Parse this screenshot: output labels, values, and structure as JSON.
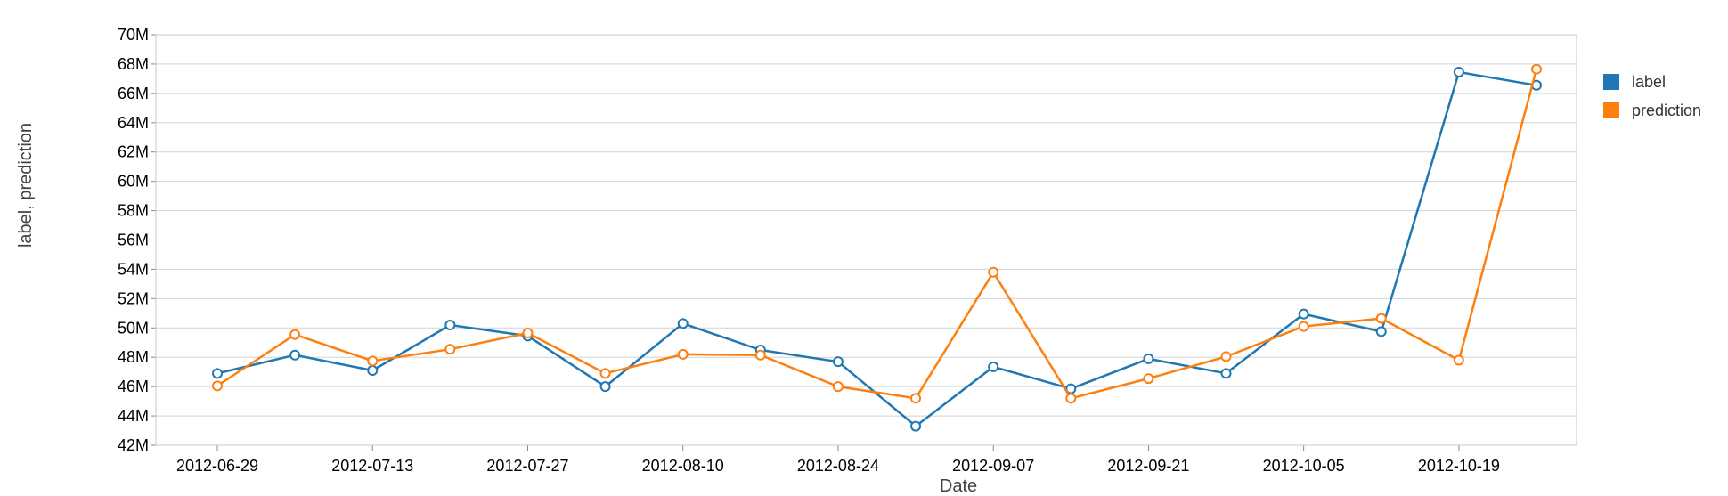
{
  "chart_data": {
    "type": "line",
    "title": "",
    "xlabel": "Date",
    "ylabel": "label, prediction",
    "ylim": [
      42000000,
      70000000
    ],
    "y_ticks": [
      {
        "value": 42000000,
        "label": "42M"
      },
      {
        "value": 44000000,
        "label": "44M"
      },
      {
        "value": 46000000,
        "label": "46M"
      },
      {
        "value": 48000000,
        "label": "48M"
      },
      {
        "value": 50000000,
        "label": "50M"
      },
      {
        "value": 52000000,
        "label": "52M"
      },
      {
        "value": 54000000,
        "label": "54M"
      },
      {
        "value": 56000000,
        "label": "56M"
      },
      {
        "value": 58000000,
        "label": "58M"
      },
      {
        "value": 60000000,
        "label": "60M"
      },
      {
        "value": 62000000,
        "label": "62M"
      },
      {
        "value": 64000000,
        "label": "64M"
      },
      {
        "value": 66000000,
        "label": "66M"
      },
      {
        "value": 68000000,
        "label": "68M"
      },
      {
        "value": 70000000,
        "label": "70M"
      }
    ],
    "x_ticks": [
      "2012-06-29",
      "2012-07-13",
      "2012-07-27",
      "2012-08-10",
      "2012-08-24",
      "2012-09-07",
      "2012-09-21",
      "2012-10-05",
      "2012-10-19"
    ],
    "x": [
      "2012-06-29",
      "2012-07-06",
      "2012-07-13",
      "2012-07-20",
      "2012-07-27",
      "2012-08-03",
      "2012-08-10",
      "2012-08-17",
      "2012-08-24",
      "2012-08-31",
      "2012-09-07",
      "2012-09-14",
      "2012-09-21",
      "2012-09-28",
      "2012-10-05",
      "2012-10-12",
      "2012-10-19",
      "2012-10-26"
    ],
    "series": [
      {
        "name": "label",
        "color": "#1f77b4",
        "values": [
          46900000,
          48150000,
          47100000,
          50200000,
          49450000,
          46000000,
          50300000,
          48500000,
          47700000,
          43300000,
          47350000,
          45850000,
          47900000,
          46900000,
          50950000,
          49750000,
          67450000,
          66550000
        ]
      },
      {
        "name": "prediction",
        "color": "#ff7f0e",
        "values": [
          46050000,
          49550000,
          47750000,
          48550000,
          49650000,
          46900000,
          48200000,
          48150000,
          46000000,
          45200000,
          53800000,
          45200000,
          46550000,
          48050000,
          50100000,
          50650000,
          47800000,
          67650000
        ]
      }
    ],
    "grid": true,
    "legend_position": "right"
  }
}
